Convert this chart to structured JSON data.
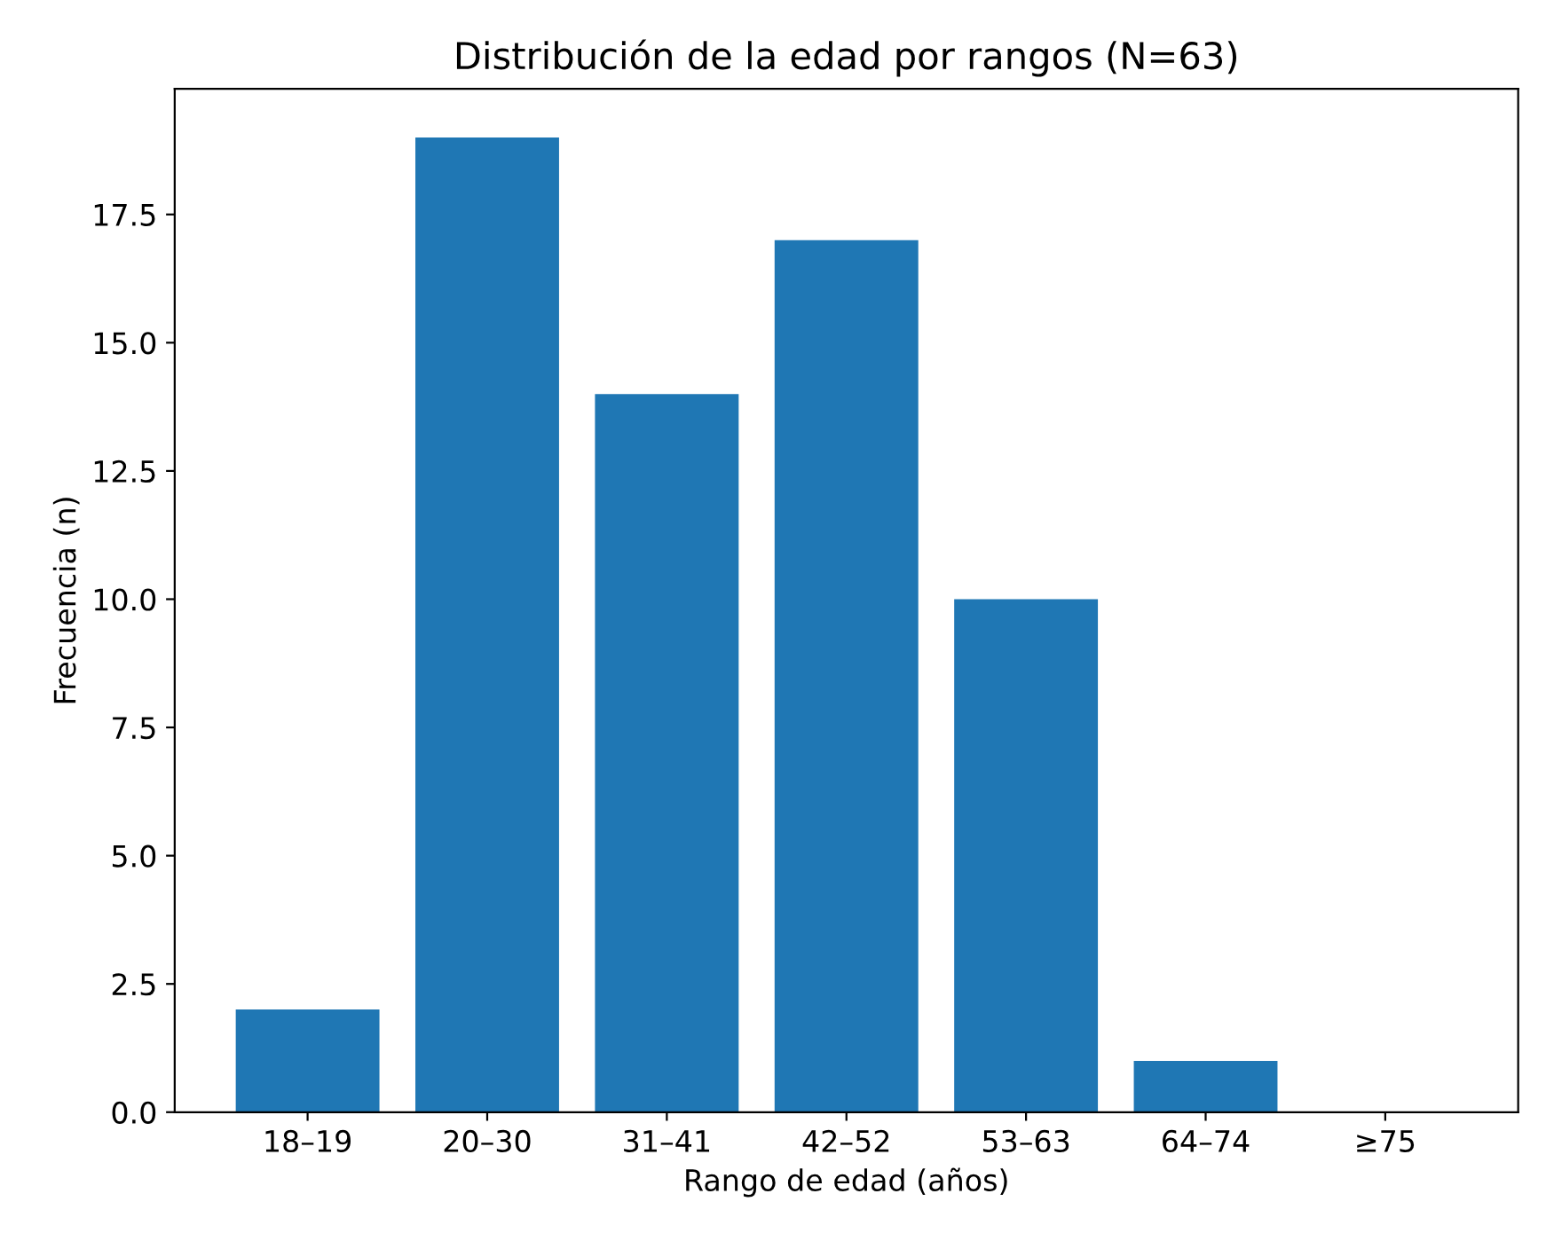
{
  "chart_data": {
    "type": "bar",
    "title": "Distribución de la edad por rangos (N=63)",
    "xlabel": "Rango de edad (años)",
    "ylabel": "Frecuencia (n)",
    "categories": [
      "18–19",
      "20–30",
      "31–41",
      "42–52",
      "53–63",
      "64–74",
      "≥75"
    ],
    "values": [
      2,
      19,
      14,
      17,
      10,
      1,
      0
    ],
    "color": "#1f77b4",
    "ylim": [
      0,
      19.95
    ],
    "yticks": [
      {
        "value": 0,
        "label": "0.0"
      },
      2.5,
      {
        "value": 5,
        "label": "5.0"
      },
      7.5,
      {
        "value": 10,
        "label": "10.0"
      },
      12.5,
      {
        "value": 15,
        "label": "15.0"
      },
      17.5
    ],
    "grid": false,
    "legend": false
  }
}
